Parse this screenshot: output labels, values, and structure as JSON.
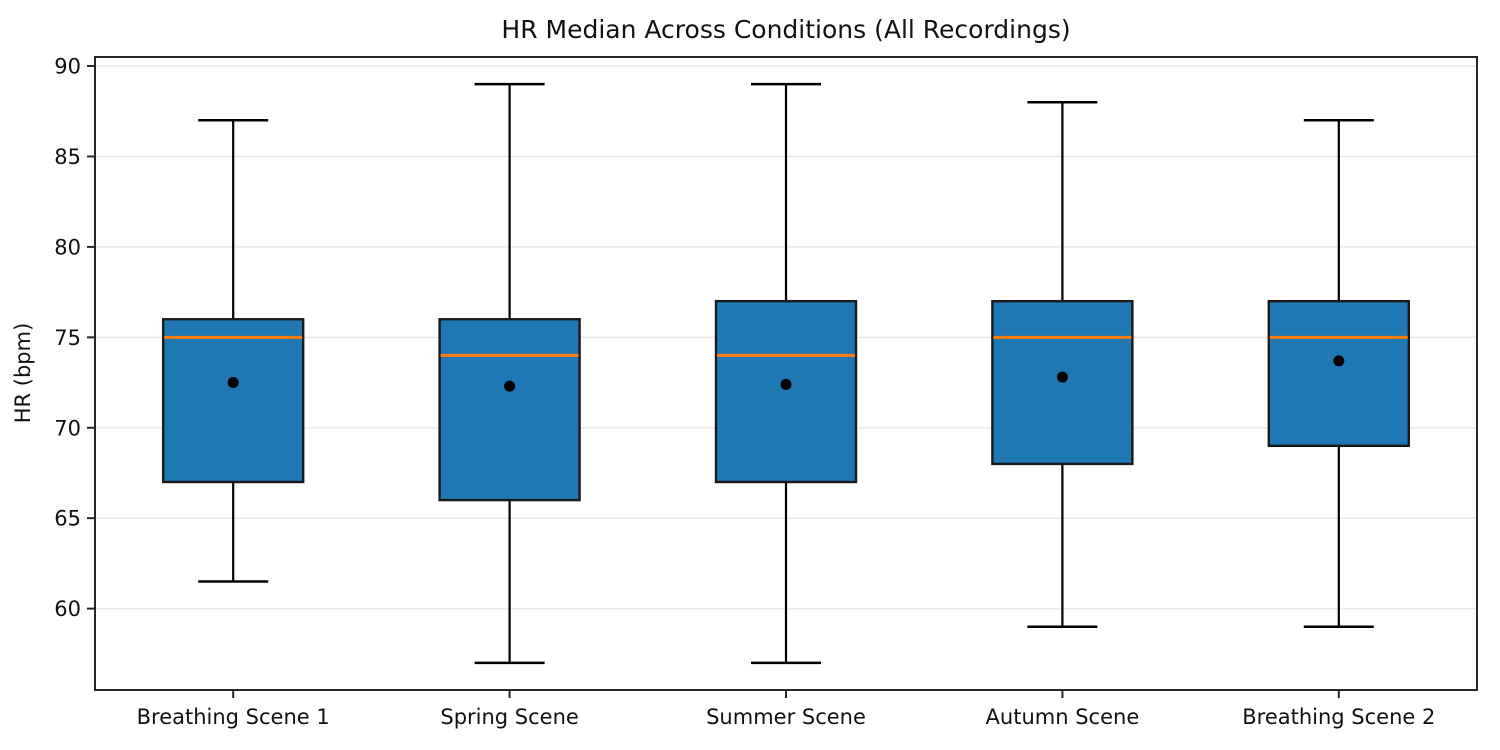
{
  "chart_data": {
    "type": "box",
    "title": "HR Median Across Conditions (All Recordings)",
    "xlabel": "",
    "ylabel": "HR (bpm)",
    "categories": [
      "Breathing Scene 1",
      "Spring Scene",
      "Summer Scene",
      "Autumn Scene",
      "Breathing Scene 2"
    ],
    "boxes": [
      {
        "label": "Breathing Scene 1",
        "whisker_low": 61.5,
        "q1": 67,
        "median": 75,
        "q3": 76,
        "whisker_high": 87,
        "mean": 72.5
      },
      {
        "label": "Spring Scene",
        "whisker_low": 57,
        "q1": 66,
        "median": 74,
        "q3": 76,
        "whisker_high": 89,
        "mean": 72.3
      },
      {
        "label": "Summer Scene",
        "whisker_low": 57,
        "q1": 67,
        "median": 74,
        "q3": 77,
        "whisker_high": 89,
        "mean": 72.4
      },
      {
        "label": "Autumn Scene",
        "whisker_low": 59,
        "q1": 68,
        "median": 75,
        "q3": 77,
        "whisker_high": 88,
        "mean": 72.8
      },
      {
        "label": "Breathing Scene 2",
        "whisker_low": 59,
        "q1": 69,
        "median": 75,
        "q3": 77,
        "whisker_high": 87,
        "mean": 73.7
      }
    ],
    "yticks": [
      60,
      65,
      70,
      75,
      80,
      85,
      90
    ],
    "ylim": [
      55.5,
      90.5
    ],
    "grid": "horizontal",
    "legend": "none",
    "colors": {
      "box_fill": "#1f77b4",
      "box_edge": "#1a1a1a",
      "median_line": "#ff7f0e",
      "mean_dot": "#000000",
      "whisker": "#000000",
      "frame": "#262626",
      "grid": "#e8e8e8",
      "background": "#ffffff"
    }
  }
}
